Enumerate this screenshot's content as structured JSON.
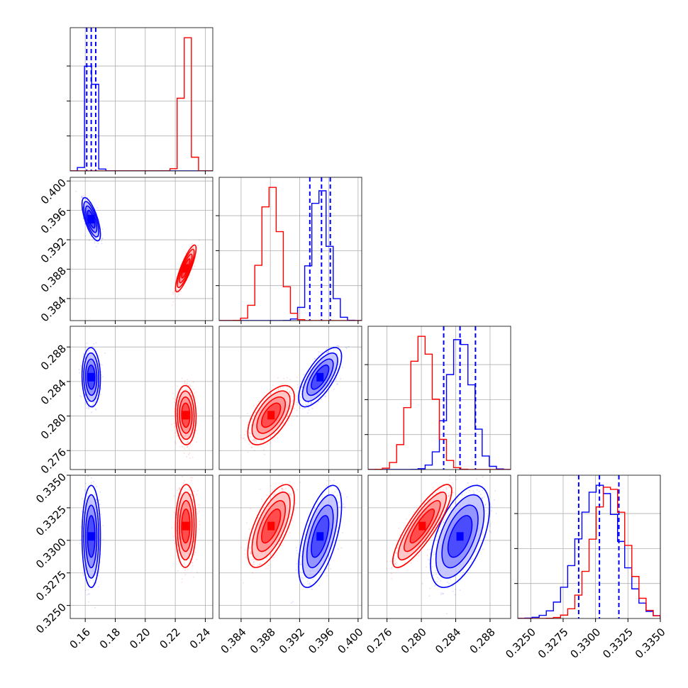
{
  "chart_data": {
    "type": "corner",
    "parameters": [
      {
        "range": [
          0.15,
          0.245
        ],
        "ticks": [
          0.16,
          0.18,
          0.2,
          0.22,
          0.24
        ],
        "tick_labels": [
          "0.16",
          "0.18",
          "0.20",
          "0.22",
          "0.24"
        ]
      },
      {
        "range": [
          0.381,
          0.4005
        ],
        "ticks": [
          0.384,
          0.388,
          0.392,
          0.396,
          0.4
        ],
        "tick_labels": [
          "0.384",
          "0.388",
          "0.392",
          "0.396",
          "0.400"
        ]
      },
      {
        "range": [
          0.2738,
          0.2904
        ],
        "ticks": [
          0.276,
          0.28,
          0.284,
          0.288
        ],
        "tick_labels": [
          "0.276",
          "0.280",
          "0.284",
          "0.288"
        ]
      },
      {
        "range": [
          0.324,
          0.335
        ],
        "ticks": [
          0.325,
          0.3275,
          0.33,
          0.3325,
          0.335
        ],
        "tick_labels": [
          "0.3250",
          "0.3275",
          "0.3300",
          "0.3325",
          "0.3350"
        ]
      }
    ],
    "series": [
      {
        "color": "#0000ff",
        "mean": [
          0.164,
          0.3948,
          0.2845,
          0.3303
        ],
        "std": [
          0.0025,
          0.0012,
          0.0014,
          0.0016
        ],
        "correlation": {
          "0-1": -0.7,
          "0-2": -0.05,
          "0-3": 0.0,
          "1-2": 0.7,
          "1-3": 0.6,
          "2-3": 0.55
        },
        "quantiles": [
          [
            0.161,
            0.164,
            0.167
          ],
          [
            0.3934,
            0.395,
            0.3962
          ],
          [
            0.2826,
            0.2845,
            0.2863
          ],
          [
            0.3287,
            0.3303,
            0.3318
          ]
        ]
      },
      {
        "color": "#ff0000",
        "mean": [
          0.227,
          0.3881,
          0.2801,
          0.3311
        ],
        "std": [
          0.0028,
          0.0013,
          0.0014,
          0.0013
        ],
        "correlation": {
          "0-1": 0.85,
          "0-2": -0.05,
          "0-3": 0.05,
          "1-2": 0.6,
          "1-3": 0.65,
          "2-3": 0.85
        },
        "quantiles": []
      }
    ],
    "histogram_bins": 20,
    "grid": true
  }
}
